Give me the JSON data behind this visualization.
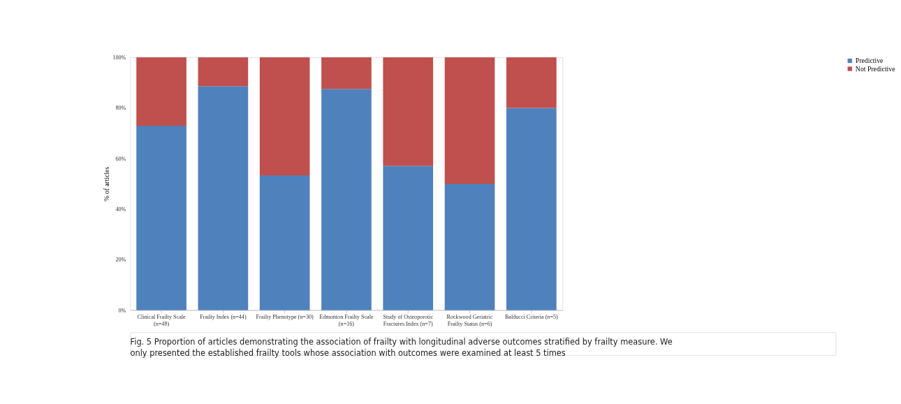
{
  "chart_data": {
    "type": "bar",
    "stacked": true,
    "ylabel": "% of articles",
    "categories": [
      "Clinical Frailty Scale (n=48)",
      "Frailty Index (n=44)",
      "Frailty Phenotype (n=30)",
      "Edmonton Frailty Scale (n=16)",
      "Study of Osteoporotic Fractures Index (n=7)",
      "Rockwood Geriatric Frailty Status (n=6)",
      "Balducci Criteria (n=5)"
    ],
    "series": [
      {
        "name": "Predictive",
        "color": "#4f81bd",
        "values": [
          72.9,
          88.6,
          53.3,
          87.5,
          57.1,
          50,
          80
        ]
      },
      {
        "name": "Not Predictive",
        "color": "#c0504d",
        "values": [
          27.1,
          11.4,
          46.7,
          12.5,
          42.9,
          50,
          20
        ]
      }
    ],
    "ylim": [
      0,
      100
    ],
    "yticks": [
      {
        "value": 0,
        "label": "0%"
      },
      {
        "value": 20,
        "label": "20%"
      },
      {
        "value": 40,
        "label": "40%"
      },
      {
        "value": 60,
        "label": "60%"
      },
      {
        "value": 80,
        "label": "80%"
      },
      {
        "value": 100,
        "label": "100%"
      }
    ],
    "grid": false,
    "legend": "right",
    "annotations": [
      "Fig. 5 Proportion of articles demonstrating the association of frailty with longitudinal adverse outcomes stratified by frailty measure. We only presented the established frailty tools whose association with outcomes were examined at least 5 times"
    ]
  }
}
